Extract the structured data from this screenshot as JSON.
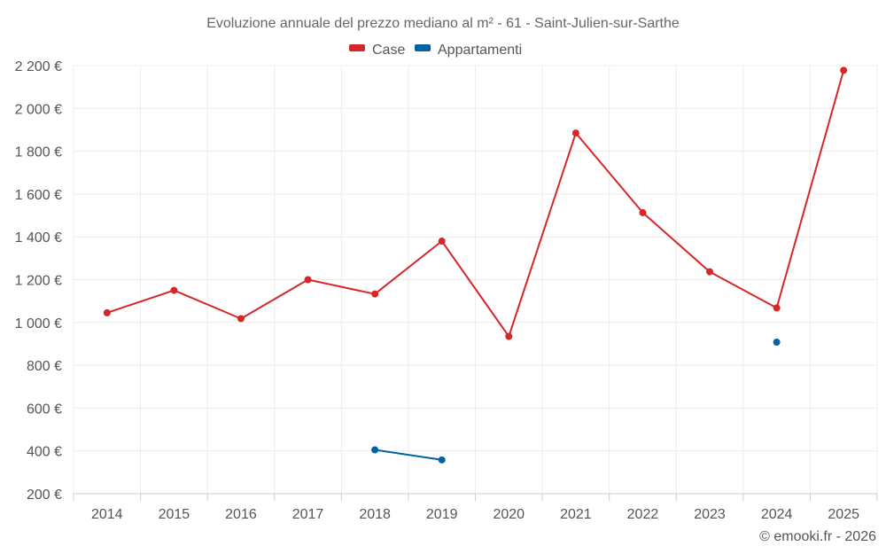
{
  "chart_data": {
    "type": "line",
    "title": "Evoluzione annuale del prezzo mediano al m² - 61 - Saint-Julien-sur-Sarthe",
    "categories": [
      "2014",
      "2015",
      "2016",
      "2017",
      "2018",
      "2019",
      "2020",
      "2021",
      "2022",
      "2023",
      "2024",
      "2025"
    ],
    "ylim": [
      200,
      2200
    ],
    "y_ticks": [
      200,
      400,
      600,
      800,
      1000,
      1200,
      1400,
      1600,
      1800,
      2000,
      2200
    ],
    "y_tick_labels": [
      "200 €",
      "400 €",
      "600 €",
      "800 €",
      "1 000 €",
      "1 200 €",
      "1 400 €",
      "1 600 €",
      "1 800 €",
      "2 000 €",
      "2 200 €"
    ],
    "grid": true,
    "legend_position": "top-center",
    "series": [
      {
        "name": "Case",
        "color": "#d62728",
        "values": [
          1045,
          1150,
          1018,
          1200,
          1133,
          1380,
          935,
          1885,
          1513,
          1237,
          1068,
          2178
        ]
      },
      {
        "name": "Appartamenti",
        "color": "#0063a3",
        "values": [
          null,
          null,
          null,
          null,
          405,
          358,
          null,
          null,
          null,
          null,
          908,
          null
        ]
      }
    ]
  },
  "credit": "© emooki.fr - 2026"
}
